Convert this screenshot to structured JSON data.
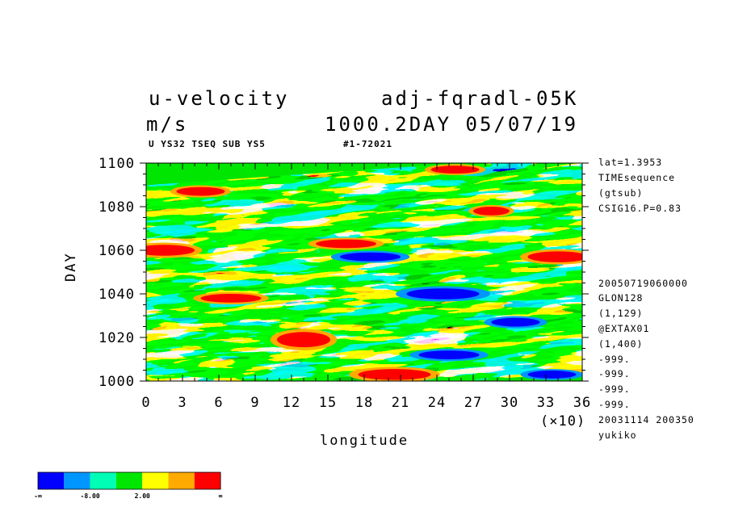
{
  "header": {
    "variable": "u-velocity",
    "run": "adj-fqradl-05K",
    "unit": "m/s",
    "datetime": "1000.2DAY 05/07/19",
    "subtitle_left": "U YS32 TSEQ SUB YS5",
    "subtitle_right": "#1-72021"
  },
  "sidebar_info": [
    "lat=1.3953",
    "TIMEsequence",
    "(gtsub)",
    "CSIG16.P=0.83"
  ],
  "sidebar_info2": [
    "20050719060000",
    "GLON128",
    "(1,129)",
    "@EXTAX01",
    "(1,400)",
    "-999.",
    "-999.",
    "-999.",
    "-999.",
    "20031114 200350",
    "yukiko"
  ],
  "chart_data": {
    "type": "heatmap",
    "xlabel": "longitude",
    "ylabel": "DAY",
    "x_scale_note": "(×10)",
    "xlim": [
      0,
      36
    ],
    "ylim": [
      1000,
      1100
    ],
    "x_ticks": [
      "0",
      "3",
      "6",
      "9",
      "12",
      "15",
      "18",
      "21",
      "24",
      "27",
      "30",
      "33",
      "36"
    ],
    "y_ticks": [
      "1000",
      "1020",
      "1040",
      "1060",
      "1080",
      "1100"
    ],
    "colorbar": {
      "colors": [
        "#0000ff",
        "#0096ff",
        "#00ffb4",
        "#00e600",
        "#ffff00",
        "#ffaa00",
        "#ff0000"
      ],
      "labels": [
        "-∞",
        "-8.00",
        "2.00",
        "∞"
      ]
    },
    "red_regions": [
      {
        "lon": 20.5,
        "day": 1003,
        "w": 3.0,
        "h": 2.5
      },
      {
        "lon": 13.0,
        "day": 1019,
        "w": 2.2,
        "h": 3.5
      },
      {
        "lon": 7.0,
        "day": 1038,
        "w": 2.5,
        "h": 2.0
      },
      {
        "lon": 1.5,
        "day": 1060,
        "w": 2.5,
        "h": 2.5
      },
      {
        "lon": 16.5,
        "day": 1063,
        "w": 2.5,
        "h": 2.0
      },
      {
        "lon": 34.0,
        "day": 1057,
        "w": 2.5,
        "h": 2.5
      },
      {
        "lon": 4.5,
        "day": 1087,
        "w": 2.0,
        "h": 2.0
      },
      {
        "lon": 25.5,
        "day": 1097,
        "w": 2.0,
        "h": 1.8
      },
      {
        "lon": 28.5,
        "day": 1078,
        "w": 1.5,
        "h": 2.0
      }
    ],
    "blue_regions": [
      {
        "lon": 24.5,
        "day": 1040,
        "w": 3.0,
        "h": 2.5
      },
      {
        "lon": 18.5,
        "day": 1057,
        "w": 2.5,
        "h": 2.0
      },
      {
        "lon": 25.0,
        "day": 1012,
        "w": 2.5,
        "h": 2.0
      },
      {
        "lon": 33.5,
        "day": 1003,
        "w": 2.0,
        "h": 1.8
      },
      {
        "lon": 30.5,
        "day": 1027,
        "w": 2.0,
        "h": 2.0
      }
    ]
  }
}
